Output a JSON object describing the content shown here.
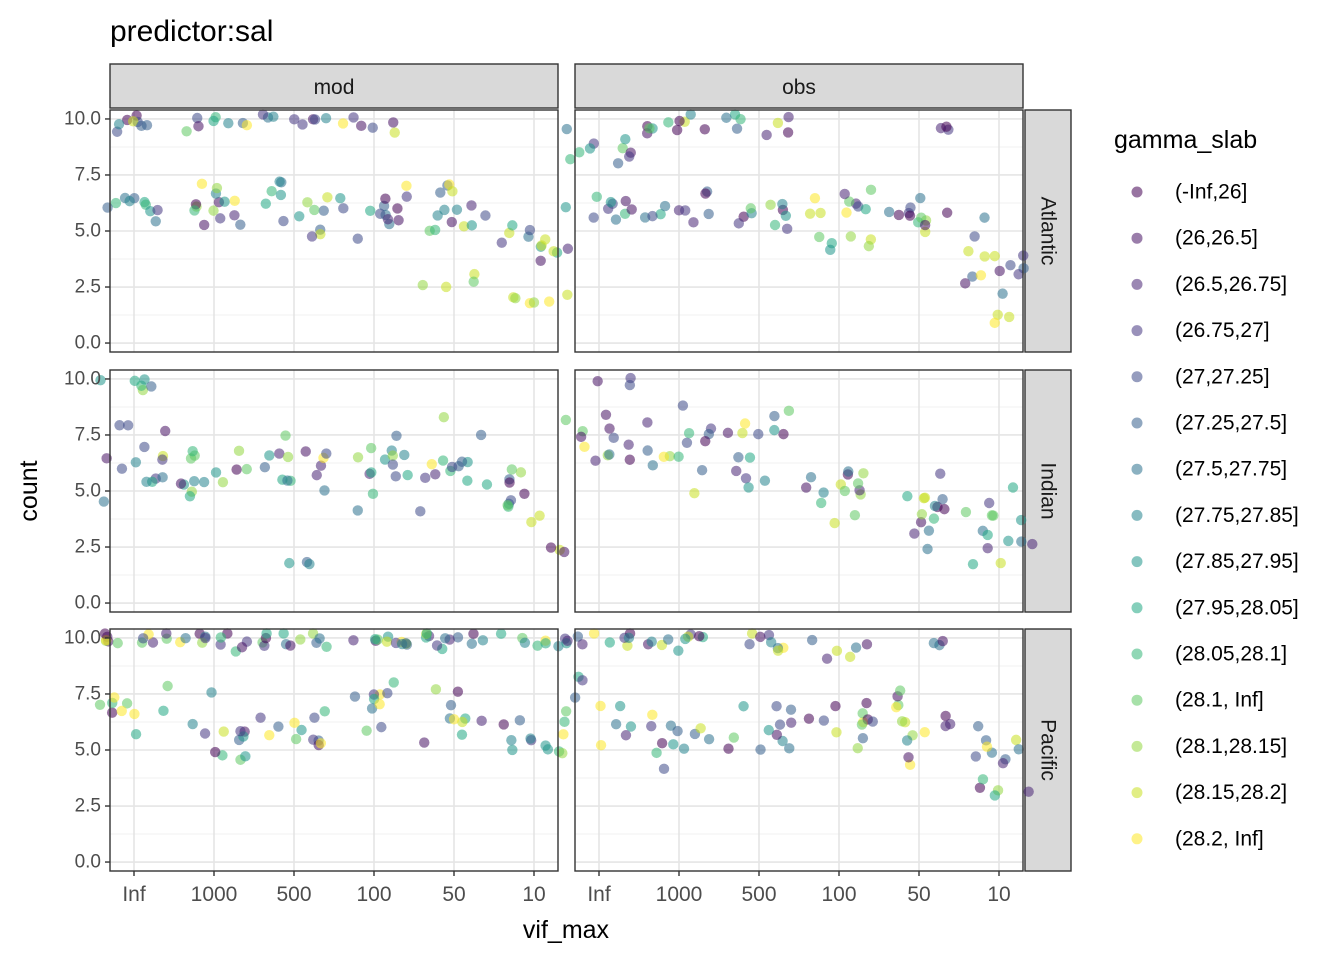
{
  "chart_data": {
    "type": "scatter",
    "title": "predictor:sal",
    "xlabel": "vif_max",
    "ylabel": "count",
    "x_ticks": [
      "Inf",
      "1000",
      "500",
      "100",
      "50",
      "10"
    ],
    "y_ticks": [
      "0.0",
      "2.5",
      "5.0",
      "7.5",
      "10.0"
    ],
    "ylim": [
      0,
      10.2
    ],
    "columns": [
      "mod",
      "obs"
    ],
    "rows": [
      "Atlantic",
      "Indian",
      "Pacific"
    ],
    "legend_title": "gamma_slab",
    "legend_position": "right",
    "grid": true,
    "point_alpha": 0.55,
    "legend": [
      {
        "label": "(-Inf,26]",
        "color": "#440154"
      },
      {
        "label": "(26,26.5]",
        "color": "#471365"
      },
      {
        "label": "(26.5,26.75]",
        "color": "#482475"
      },
      {
        "label": "(26.75,27]",
        "color": "#453781"
      },
      {
        "label": "(27,27.25]",
        "color": "#3e4a89"
      },
      {
        "label": "(27.25,27.5]",
        "color": "#355f8d"
      },
      {
        "label": "(27.5,27.75]",
        "color": "#2c718e"
      },
      {
        "label": "(27.75,27.85]",
        "color": "#24848e"
      },
      {
        "label": "(27.85,27.95]",
        "color": "#1f968b"
      },
      {
        "label": "(27.95,28.05]",
        "color": "#21a784"
      },
      {
        "label": "(28.05,28.1]",
        "color": "#35b779"
      },
      {
        "label": "(28.1, Inf]",
        "color": "#5ec962"
      },
      {
        "label": "(28.1,28.15]",
        "color": "#94d741"
      },
      {
        "label": "(28.15,28.2]",
        "color": "#c8e020"
      },
      {
        "label": "(28.2, Inf]",
        "color": "#fde725"
      }
    ],
    "panels": [
      {
        "column": "mod",
        "row": "Atlantic",
        "clusters": [
          {
            "x": 0,
            "y": 6.0,
            "spread_y": 0.5,
            "n": 10,
            "level_range": [
              3,
              11
            ]
          },
          {
            "x": 0,
            "y": 9.8,
            "spread_y": 0.4,
            "n": 8,
            "level_range": [
              0,
              14
            ]
          },
          {
            "x": 1,
            "y": 6.0,
            "spread_y": 1.0,
            "n": 14,
            "level_range": [
              0,
              14
            ]
          },
          {
            "x": 1,
            "y": 9.9,
            "spread_y": 0.3,
            "n": 8,
            "level_range": [
              0,
              14
            ]
          },
          {
            "x": 2,
            "y": 6.0,
            "spread_y": 0.9,
            "n": 14,
            "level_range": [
              0,
              14
            ]
          },
          {
            "x": 2,
            "y": 9.9,
            "spread_y": 0.3,
            "n": 8,
            "level_range": [
              0,
              14
            ]
          },
          {
            "x": 3,
            "y": 6.0,
            "spread_y": 0.9,
            "n": 14,
            "level_range": [
              0,
              14
            ]
          },
          {
            "x": 3,
            "y": 9.8,
            "spread_y": 0.3,
            "n": 6,
            "level_range": [
              0,
              14
            ]
          },
          {
            "x": 4,
            "y": 5.8,
            "spread_y": 1.2,
            "n": 14,
            "level_range": [
              0,
              14
            ]
          },
          {
            "x": 4,
            "y": 2.8,
            "spread_y": 0.4,
            "n": 4,
            "level_range": [
              11,
              14
            ]
          },
          {
            "x": 5,
            "y": 4.5,
            "spread_y": 0.8,
            "n": 12,
            "level_range": [
              0,
              14
            ]
          },
          {
            "x": 5,
            "y": 2.0,
            "spread_y": 0.3,
            "n": 6,
            "level_range": [
              10,
              14
            ]
          }
        ]
      },
      {
        "column": "obs",
        "row": "Atlantic",
        "clusters": [
          {
            "x": 0,
            "y": 5.9,
            "spread_y": 0.5,
            "n": 10,
            "level_range": [
              0,
              10
            ]
          },
          {
            "x": 0,
            "y": 8.5,
            "spread_y": 0.8,
            "n": 10,
            "level_range": [
              0,
              14
            ]
          },
          {
            "x": 1,
            "y": 6.0,
            "spread_y": 0.6,
            "n": 10,
            "level_range": [
              0,
              10
            ]
          },
          {
            "x": 1,
            "y": 9.8,
            "spread_y": 0.4,
            "n": 10,
            "level_range": [
              0,
              14
            ]
          },
          {
            "x": 2,
            "y": 6.0,
            "spread_y": 0.6,
            "n": 10,
            "level_range": [
              0,
              12
            ]
          },
          {
            "x": 2,
            "y": 9.8,
            "spread_y": 0.4,
            "n": 8,
            "level_range": [
              0,
              14
            ]
          },
          {
            "x": 3,
            "y": 6.2,
            "spread_y": 0.5,
            "n": 10,
            "level_range": [
              0,
              14
            ]
          },
          {
            "x": 3,
            "y": 4.5,
            "spread_y": 0.6,
            "n": 6,
            "level_range": [
              8,
              14
            ]
          },
          {
            "x": 4,
            "y": 5.5,
            "spread_y": 1.0,
            "n": 12,
            "level_range": [
              0,
              14
            ]
          },
          {
            "x": 4,
            "y": 9.6,
            "spread_y": 0.2,
            "n": 3,
            "level_range": [
              0,
              4
            ]
          },
          {
            "x": 5,
            "y": 3.5,
            "spread_y": 1.2,
            "n": 14,
            "level_range": [
              0,
              14
            ]
          },
          {
            "x": 5,
            "y": 1.0,
            "spread_y": 0.3,
            "n": 3,
            "level_range": [
              13,
              14
            ]
          }
        ]
      },
      {
        "column": "mod",
        "row": "Indian",
        "clusters": [
          {
            "x": 0,
            "y": 6.5,
            "spread_y": 1.2,
            "n": 14,
            "level_range": [
              0,
              14
            ]
          },
          {
            "x": 0,
            "y": 9.8,
            "spread_y": 0.3,
            "n": 6,
            "level_range": [
              5,
              12
            ]
          },
          {
            "x": 1,
            "y": 6.2,
            "spread_y": 1.3,
            "n": 14,
            "level_range": [
              0,
              14
            ]
          },
          {
            "x": 2,
            "y": 6.2,
            "spread_y": 1.3,
            "n": 14,
            "level_range": [
              0,
              14
            ]
          },
          {
            "x": 2,
            "y": 1.8,
            "spread_y": 0.1,
            "n": 3,
            "level_range": [
              5,
              8
            ]
          },
          {
            "x": 3,
            "y": 6.0,
            "spread_y": 1.3,
            "n": 14,
            "level_range": [
              0,
              14
            ]
          },
          {
            "x": 4,
            "y": 6.0,
            "spread_y": 1.4,
            "n": 14,
            "level_range": [
              0,
              14
            ]
          },
          {
            "x": 5,
            "y": 4.5,
            "spread_y": 1.5,
            "n": 14,
            "level_range": [
              0,
              14
            ]
          }
        ]
      },
      {
        "column": "obs",
        "row": "Indian",
        "clusters": [
          {
            "x": 0,
            "y": 7.0,
            "spread_y": 1.2,
            "n": 12,
            "level_range": [
              0,
              14
            ]
          },
          {
            "x": 0,
            "y": 10.0,
            "spread_y": 0.2,
            "n": 3,
            "level_range": [
              0,
              6
            ]
          },
          {
            "x": 1,
            "y": 7.0,
            "spread_y": 1.5,
            "n": 14,
            "level_range": [
              0,
              14
            ]
          },
          {
            "x": 2,
            "y": 7.0,
            "spread_y": 1.5,
            "n": 14,
            "level_range": [
              0,
              14
            ]
          },
          {
            "x": 3,
            "y": 4.8,
            "spread_y": 1.3,
            "n": 14,
            "level_range": [
              0,
              14
            ]
          },
          {
            "x": 4,
            "y": 4.5,
            "spread_y": 1.3,
            "n": 14,
            "level_range": [
              0,
              14
            ]
          },
          {
            "x": 5,
            "y": 3.5,
            "spread_y": 1.4,
            "n": 14,
            "level_range": [
              0,
              14
            ]
          }
        ]
      },
      {
        "column": "mod",
        "row": "Pacific",
        "clusters": [
          {
            "x": 0,
            "y": 9.9,
            "spread_y": 0.3,
            "n": 12,
            "level_range": [
              0,
              14
            ]
          },
          {
            "x": 0,
            "y": 7.0,
            "spread_y": 0.9,
            "n": 10,
            "level_range": [
              0,
              14
            ]
          },
          {
            "x": 1,
            "y": 9.9,
            "spread_y": 0.3,
            "n": 12,
            "level_range": [
              0,
              14
            ]
          },
          {
            "x": 1,
            "y": 5.5,
            "spread_y": 1.2,
            "n": 12,
            "level_range": [
              0,
              14
            ]
          },
          {
            "x": 2,
            "y": 9.9,
            "spread_y": 0.3,
            "n": 12,
            "level_range": [
              0,
              14
            ]
          },
          {
            "x": 2,
            "y": 5.8,
            "spread_y": 1.2,
            "n": 12,
            "level_range": [
              0,
              14
            ]
          },
          {
            "x": 3,
            "y": 9.9,
            "spread_y": 0.3,
            "n": 12,
            "level_range": [
              0,
              14
            ]
          },
          {
            "x": 3,
            "y": 6.5,
            "spread_y": 1.0,
            "n": 10,
            "level_range": [
              0,
              14
            ]
          },
          {
            "x": 4,
            "y": 9.9,
            "spread_y": 0.3,
            "n": 12,
            "level_range": [
              0,
              14
            ]
          },
          {
            "x": 4,
            "y": 6.0,
            "spread_y": 1.2,
            "n": 10,
            "level_range": [
              0,
              14
            ]
          },
          {
            "x": 5,
            "y": 9.9,
            "spread_y": 0.3,
            "n": 8,
            "level_range": [
              0,
              14
            ]
          },
          {
            "x": 5,
            "y": 5.5,
            "spread_y": 1.0,
            "n": 12,
            "level_range": [
              0,
              14
            ]
          }
        ]
      },
      {
        "column": "obs",
        "row": "Pacific",
        "clusters": [
          {
            "x": 0,
            "y": 9.8,
            "spread_y": 0.4,
            "n": 10,
            "level_range": [
              0,
              14
            ]
          },
          {
            "x": 0,
            "y": 6.5,
            "spread_y": 1.2,
            "n": 10,
            "level_range": [
              0,
              14
            ]
          },
          {
            "x": 1,
            "y": 9.8,
            "spread_y": 0.4,
            "n": 10,
            "level_range": [
              0,
              14
            ]
          },
          {
            "x": 1,
            "y": 6.0,
            "spread_y": 1.4,
            "n": 12,
            "level_range": [
              0,
              14
            ]
          },
          {
            "x": 2,
            "y": 9.8,
            "spread_y": 0.4,
            "n": 8,
            "level_range": [
              0,
              14
            ]
          },
          {
            "x": 2,
            "y": 5.8,
            "spread_y": 1.2,
            "n": 12,
            "level_range": [
              0,
              14
            ]
          },
          {
            "x": 3,
            "y": 9.6,
            "spread_y": 0.5,
            "n": 6,
            "level_range": [
              0,
              14
            ]
          },
          {
            "x": 3,
            "y": 6.8,
            "spread_y": 1.2,
            "n": 12,
            "level_range": [
              0,
              14
            ]
          },
          {
            "x": 4,
            "y": 6.0,
            "spread_y": 1.4,
            "n": 14,
            "level_range": [
              0,
              14
            ]
          },
          {
            "x": 4,
            "y": 9.9,
            "spread_y": 0.2,
            "n": 3,
            "level_range": [
              0,
              10
            ]
          },
          {
            "x": 5,
            "y": 4.5,
            "spread_y": 1.5,
            "n": 14,
            "level_range": [
              0,
              14
            ]
          }
        ]
      }
    ]
  }
}
